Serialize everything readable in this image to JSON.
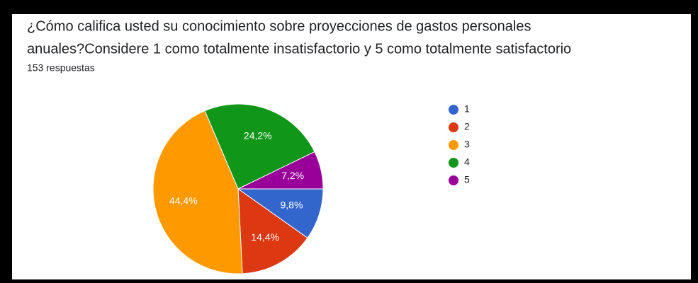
{
  "chart_data": {
    "type": "pie",
    "title": "¿Cómo califica usted su conocimiento sobre proyecciones de gastos personales anuales?Considere 1 como totalmente insatisfactorio y 5 como totalmente satisfactorio",
    "title_lines": [
      "¿Cómo califica usted su conocimiento sobre proyecciones de gastos personales",
      "anuales?Considere 1 como totalmente insatisfactorio y 5 como totalmente satisfactorio"
    ],
    "subtitle": "153 respuestas",
    "categories": [
      "1",
      "2",
      "3",
      "4",
      "5"
    ],
    "values": [
      9.8,
      14.4,
      44.4,
      24.2,
      7.2
    ],
    "value_labels": [
      "9,8%",
      "14,4%",
      "44,4%",
      "24,2%",
      "7,2%"
    ],
    "colors": [
      "#3366cc",
      "#dc3912",
      "#ff9900",
      "#109618",
      "#990099"
    ],
    "legend": "right"
  }
}
